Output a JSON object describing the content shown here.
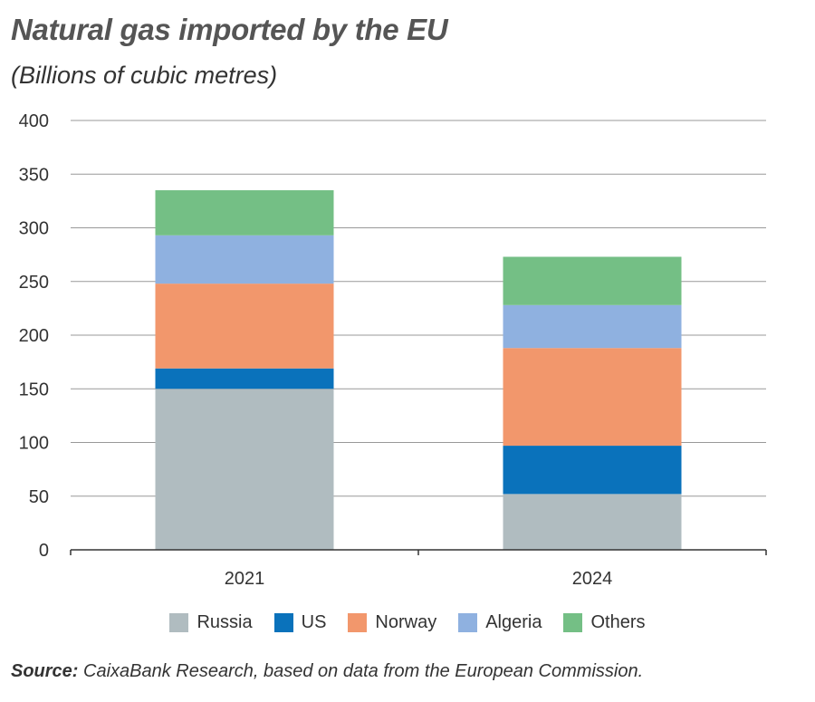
{
  "title": "Natural gas imported by the EU",
  "subtitle": "(Billions of cubic metres)",
  "source_label": "Source:",
  "source_text": " CaixaBank Research, based on data from the European Commission.",
  "chart_data": {
    "type": "bar",
    "stacked": true,
    "categories": [
      "2021",
      "2024"
    ],
    "series": [
      {
        "name": "Russia",
        "color": "#b0bcc0",
        "values": [
          150,
          52
        ]
      },
      {
        "name": "US",
        "color": "#0a72bb",
        "values": [
          19,
          45
        ]
      },
      {
        "name": "Norway",
        "color": "#f2976c",
        "values": [
          79,
          91
        ]
      },
      {
        "name": "Algeria",
        "color": "#8fb1e0",
        "values": [
          45,
          40
        ]
      },
      {
        "name": "Others",
        "color": "#74bf85",
        "values": [
          42,
          45
        ]
      }
    ],
    "ylim": [
      0,
      400
    ],
    "yticks": [
      0,
      50,
      100,
      150,
      200,
      250,
      300,
      350,
      400
    ],
    "grid": true,
    "legend_position": "bottom"
  }
}
